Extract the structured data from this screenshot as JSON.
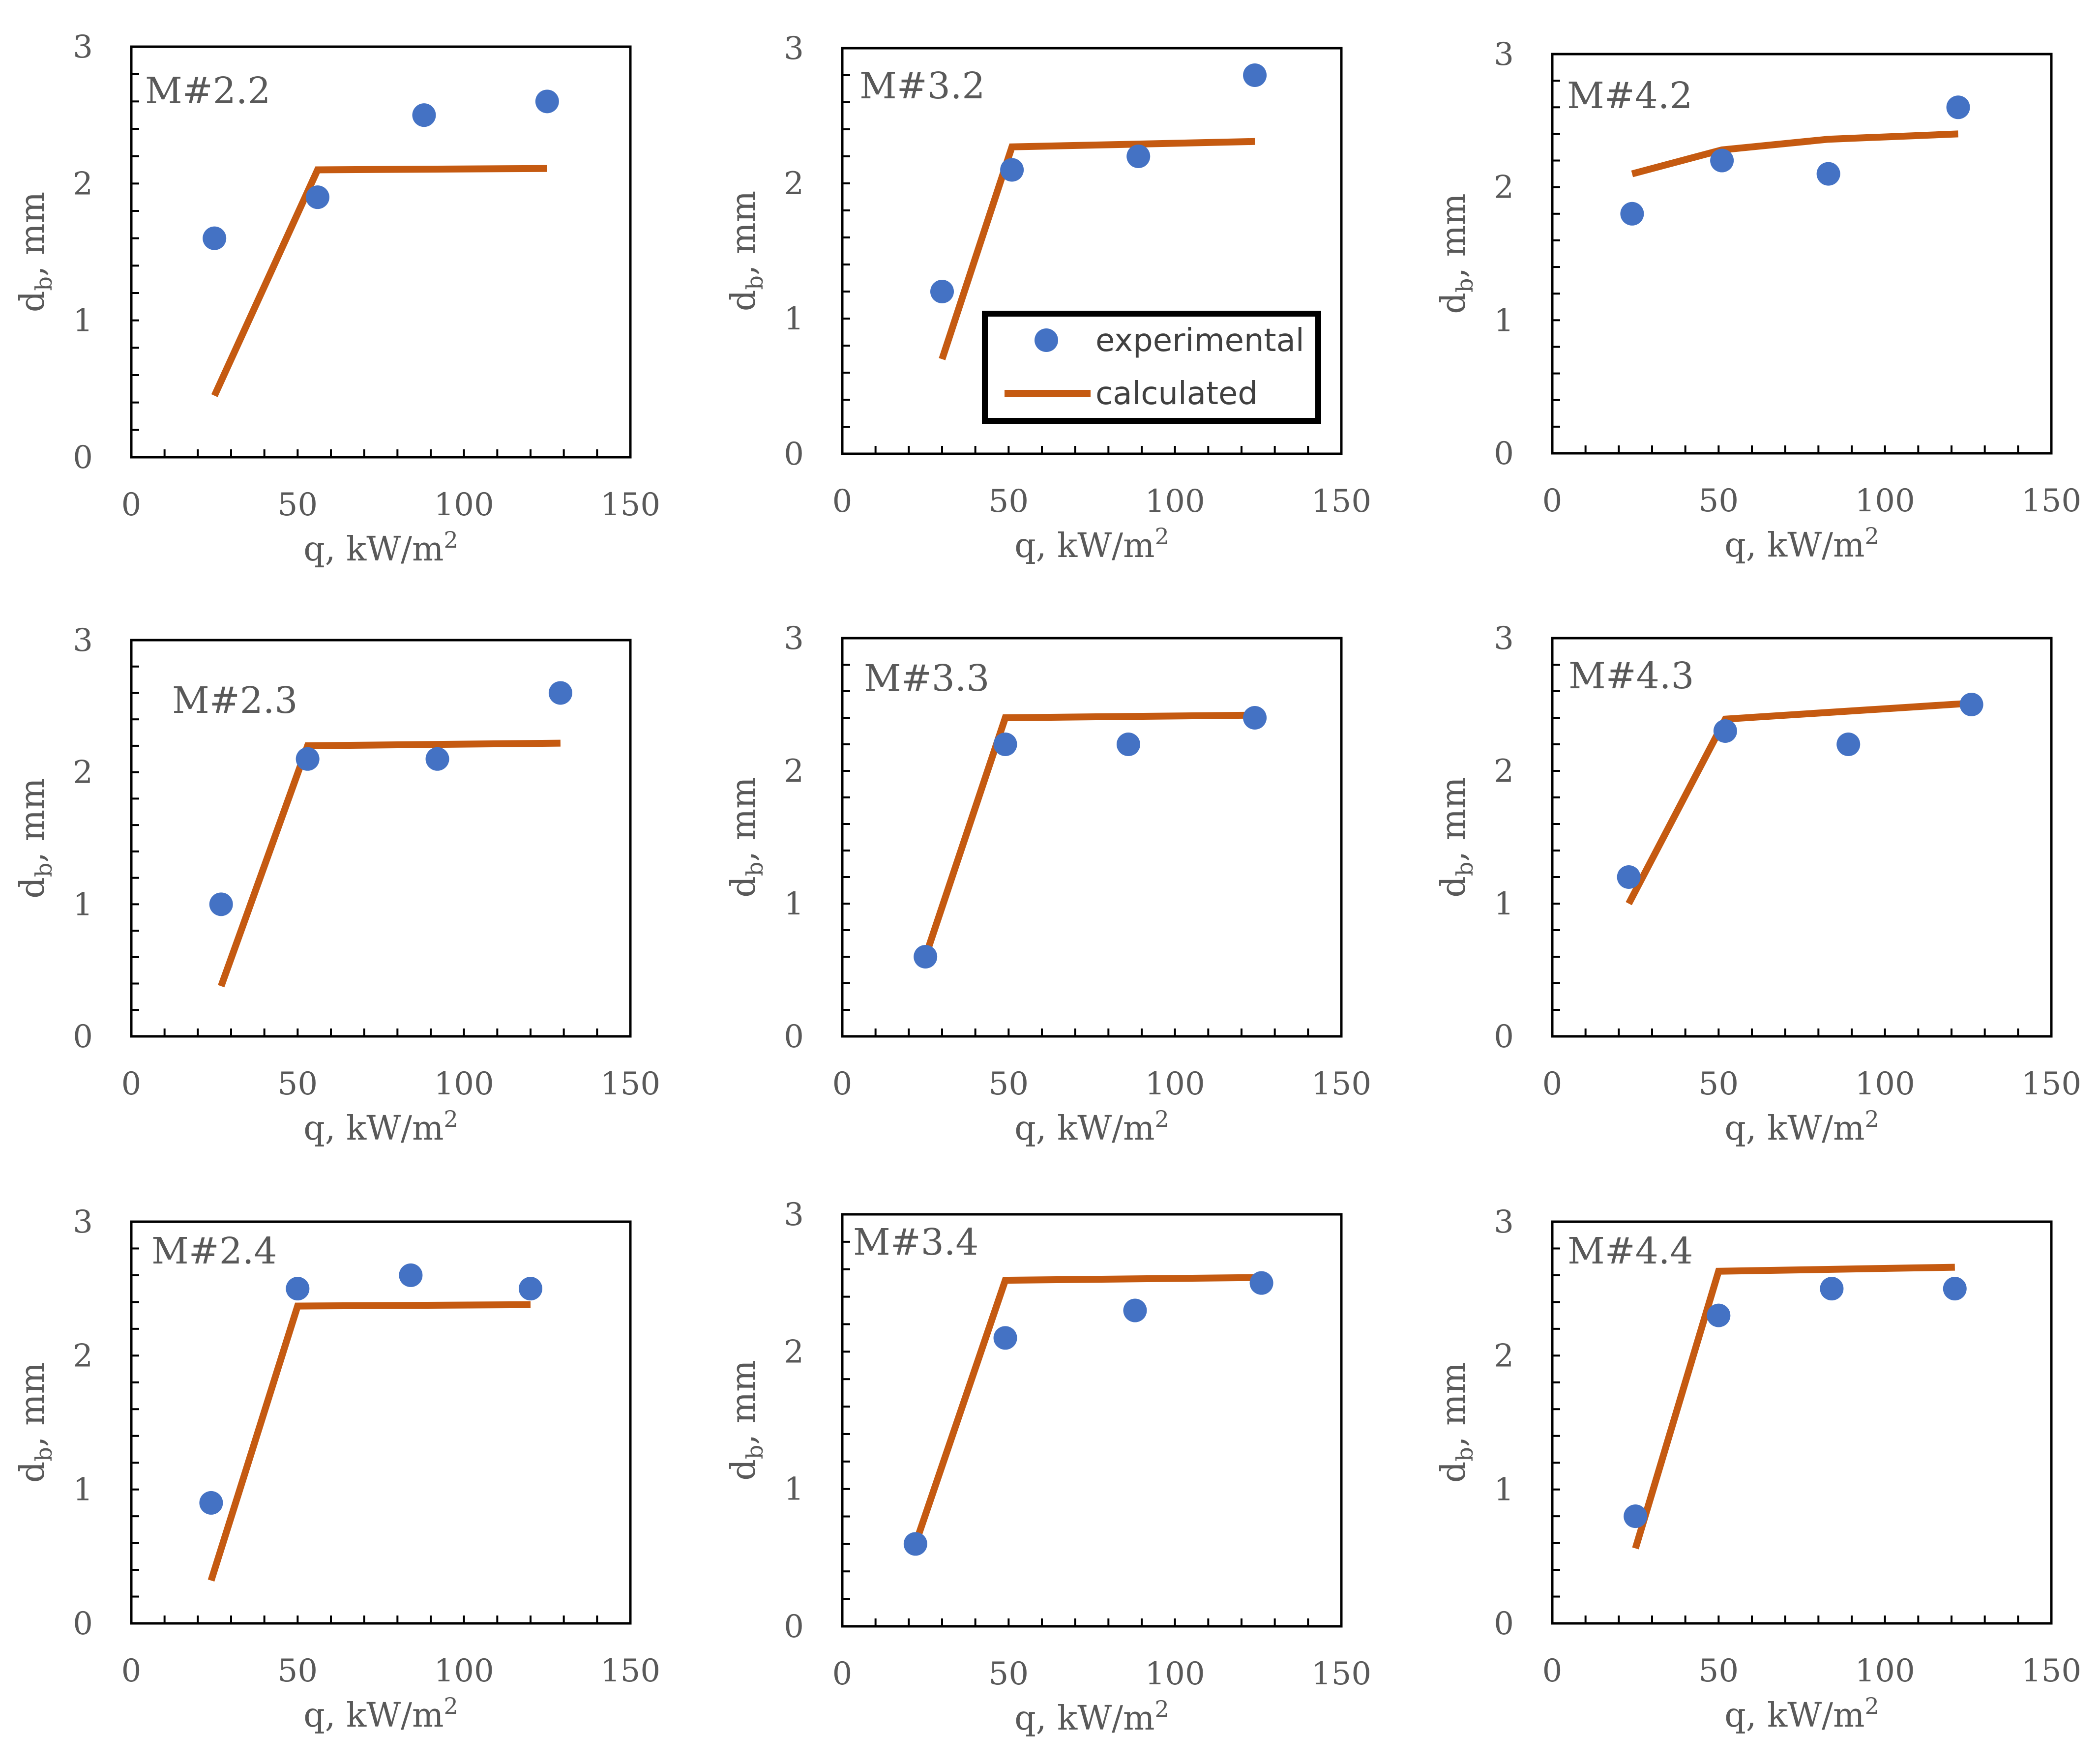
{
  "chart_data": [
    {
      "type": "scatter",
      "title": "M#2.2",
      "xlabel": "q, kW/m2",
      "ylabel": "db, mm",
      "xlim": [
        0,
        150
      ],
      "ylim": [
        0,
        3
      ],
      "xticks": [
        0,
        50,
        100,
        150
      ],
      "yticks": [
        0,
        1,
        2,
        3
      ],
      "series": [
        {
          "name": "experimental",
          "kind": "scatter",
          "x": [
            25,
            56,
            88,
            125
          ],
          "y": [
            1.6,
            1.9,
            2.5,
            2.6
          ]
        },
        {
          "name": "calculated",
          "kind": "line",
          "x": [
            25,
            56,
            125
          ],
          "y": [
            0.45,
            2.1,
            2.11
          ]
        }
      ]
    },
    {
      "type": "scatter",
      "title": "M#3.2",
      "xlabel": "q, kW/m2",
      "ylabel": "db, mm",
      "xlim": [
        0,
        150
      ],
      "ylim": [
        0,
        3
      ],
      "xticks": [
        0,
        50,
        100,
        150
      ],
      "yticks": [
        0,
        1,
        2,
        3
      ],
      "series": [
        {
          "name": "experimental",
          "kind": "scatter",
          "x": [
            30,
            51,
            89,
            124
          ],
          "y": [
            1.2,
            2.1,
            2.2,
            2.8
          ]
        },
        {
          "name": "calculated",
          "kind": "line",
          "x": [
            30,
            51,
            124
          ],
          "y": [
            0.7,
            2.27,
            2.31
          ]
        }
      ]
    },
    {
      "type": "scatter",
      "title": "M#4.2",
      "xlabel": "q, kW/m2",
      "ylabel": "db, mm",
      "xlim": [
        0,
        150
      ],
      "ylim": [
        0,
        3
      ],
      "xticks": [
        0,
        50,
        100,
        150
      ],
      "yticks": [
        0,
        1,
        2,
        3
      ],
      "series": [
        {
          "name": "experimental",
          "kind": "scatter",
          "x": [
            24,
            51,
            83,
            122
          ],
          "y": [
            1.8,
            2.2,
            2.1,
            2.6
          ]
        },
        {
          "name": "calculated",
          "kind": "line",
          "x": [
            24,
            51,
            83,
            122
          ],
          "y": [
            2.1,
            2.28,
            2.36,
            2.4
          ]
        }
      ]
    },
    {
      "type": "scatter",
      "title": "M#2.3",
      "xlabel": "q, kW/m2",
      "ylabel": "db, mm",
      "xlim": [
        0,
        150
      ],
      "ylim": [
        0,
        3
      ],
      "xticks": [
        0,
        50,
        100,
        150
      ],
      "yticks": [
        0,
        1,
        2,
        3
      ],
      "series": [
        {
          "name": "experimental",
          "kind": "scatter",
          "x": [
            27,
            53,
            92,
            129
          ],
          "y": [
            1.0,
            2.1,
            2.1,
            2.6
          ]
        },
        {
          "name": "calculated",
          "kind": "line",
          "x": [
            27,
            53,
            129
          ],
          "y": [
            0.38,
            2.2,
            2.22
          ]
        }
      ]
    },
    {
      "type": "scatter",
      "title": "M#3.3",
      "xlabel": "q, kW/m2",
      "ylabel": "db, mm",
      "xlim": [
        0,
        150
      ],
      "ylim": [
        0,
        3
      ],
      "xticks": [
        0,
        50,
        100,
        150
      ],
      "yticks": [
        0,
        1,
        2,
        3
      ],
      "series": [
        {
          "name": "experimental",
          "kind": "scatter",
          "x": [
            25,
            49,
            86,
            124
          ],
          "y": [
            0.6,
            2.2,
            2.2,
            2.4
          ]
        },
        {
          "name": "calculated",
          "kind": "line",
          "x": [
            25,
            49,
            124
          ],
          "y": [
            0.6,
            2.4,
            2.42
          ]
        }
      ]
    },
    {
      "type": "scatter",
      "title": "M#4.3",
      "xlabel": "q, kW/m2",
      "ylabel": "db, mm",
      "xlim": [
        0,
        150
      ],
      "ylim": [
        0,
        3
      ],
      "xticks": [
        0,
        50,
        100,
        150
      ],
      "yticks": [
        0,
        1,
        2,
        3
      ],
      "series": [
        {
          "name": "experimental",
          "kind": "scatter",
          "x": [
            23,
            52,
            89,
            126
          ],
          "y": [
            1.2,
            2.3,
            2.2,
            2.5
          ]
        },
        {
          "name": "calculated",
          "kind": "line",
          "x": [
            23,
            52,
            126
          ],
          "y": [
            1.0,
            2.39,
            2.51
          ]
        }
      ]
    },
    {
      "type": "scatter",
      "title": "M#2.4",
      "xlabel": "q, kW/m2",
      "ylabel": "db, mm",
      "xlim": [
        0,
        150
      ],
      "ylim": [
        0,
        3
      ],
      "xticks": [
        0,
        50,
        100,
        150
      ],
      "yticks": [
        0,
        1,
        2,
        3
      ],
      "series": [
        {
          "name": "experimental",
          "kind": "scatter",
          "x": [
            24,
            50,
            84,
            120
          ],
          "y": [
            0.9,
            2.5,
            2.6,
            2.5
          ]
        },
        {
          "name": "calculated",
          "kind": "line",
          "x": [
            24,
            50,
            120
          ],
          "y": [
            0.32,
            2.37,
            2.38
          ]
        }
      ]
    },
    {
      "type": "scatter",
      "title": "M#3.4",
      "xlabel": "q, kW/m2",
      "ylabel": "db, mm",
      "xlim": [
        0,
        150
      ],
      "ylim": [
        0,
        3
      ],
      "xticks": [
        0,
        50,
        100,
        150
      ],
      "yticks": [
        0,
        1,
        2,
        3
      ],
      "series": [
        {
          "name": "experimental",
          "kind": "scatter",
          "x": [
            22,
            49,
            88,
            126
          ],
          "y": [
            0.6,
            2.1,
            2.3,
            2.5
          ]
        },
        {
          "name": "calculated",
          "kind": "line",
          "x": [
            22,
            49,
            126
          ],
          "y": [
            0.6,
            2.52,
            2.54
          ]
        }
      ]
    },
    {
      "type": "scatter",
      "title": "M#4.4",
      "xlabel": "q, kW/m2",
      "ylabel": "db, mm",
      "xlim": [
        0,
        150
      ],
      "ylim": [
        0,
        3
      ],
      "xticks": [
        0,
        50,
        100,
        150
      ],
      "yticks": [
        0,
        1,
        2,
        3
      ],
      "series": [
        {
          "name": "experimental",
          "kind": "scatter",
          "x": [
            25,
            50,
            84,
            121
          ],
          "y": [
            0.8,
            2.3,
            2.5,
            2.5
          ]
        },
        {
          "name": "calculated",
          "kind": "line",
          "x": [
            25,
            50,
            121
          ],
          "y": [
            0.56,
            2.63,
            2.66
          ]
        }
      ]
    }
  ],
  "legend": {
    "entries": [
      {
        "label": "experimental",
        "color": "#4472C4",
        "marker": "circle"
      },
      {
        "label": "calculated",
        "color": "#C55A11",
        "marker": "line"
      }
    ]
  },
  "axis_text": {
    "x_main": "q, kW/m",
    "x_sup": "2",
    "y_main": "d",
    "y_sub": "b",
    "y_unit": ", mm"
  },
  "colors": {
    "experimental": "#4472C4",
    "calculated": "#C55A11",
    "axis": "#000000",
    "text": "#595959"
  }
}
